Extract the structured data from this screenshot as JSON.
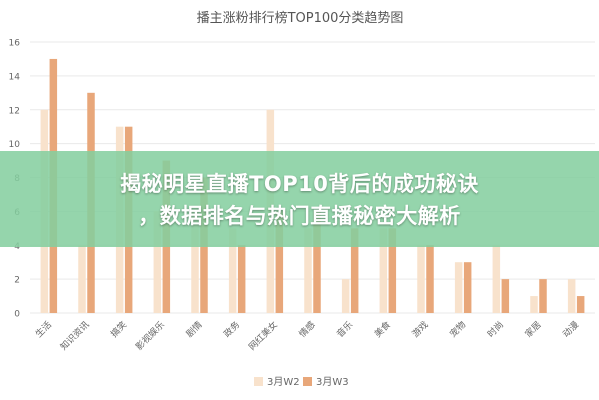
{
  "colors": {
    "w2": "#f8e2cc",
    "w3": "#e8a77a",
    "grid": "#e9e9e9",
    "text": "#555555",
    "banner": "#84ce9e"
  },
  "banner": {
    "line1": "揭秘明星直播TOP10背后的成功秘诀",
    "line2": "，数据排名与热门直播秘密大解析"
  },
  "chart_data": {
    "type": "bar",
    "title": "播主涨粉排行榜TOP100分类趋势图",
    "xlabel": "",
    "ylabel": "",
    "ylim": [
      0,
      16
    ],
    "yticks": [
      0,
      2,
      4,
      6,
      8,
      10,
      12,
      14,
      16
    ],
    "grid": true,
    "legend_position": "bottom",
    "categories": [
      "生活",
      "知识资讯",
      "搞笑",
      "影视娱乐",
      "剧情",
      "政务",
      "网红美女",
      "情感",
      "音乐",
      "美食",
      "游戏",
      "宠物",
      "时尚",
      "家居",
      "动漫"
    ],
    "series": [
      {
        "name": "3月W2",
        "values": [
          12,
          4,
          11,
          6,
          6,
          5,
          12,
          5,
          2,
          5,
          4,
          3,
          4,
          1,
          2
        ]
      },
      {
        "name": "3月W3",
        "values": [
          15,
          13,
          11,
          9,
          8,
          4,
          6,
          6,
          5,
          5,
          4,
          3,
          2,
          2,
          1
        ]
      }
    ]
  }
}
